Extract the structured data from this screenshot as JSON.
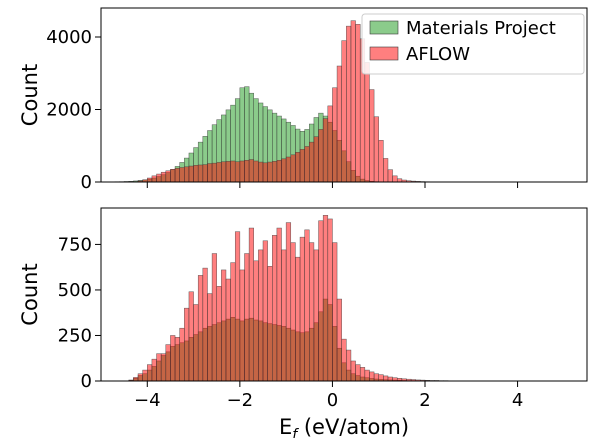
{
  "chart_data": [
    {
      "type": "bar",
      "panel": "top",
      "ylabel": "Count",
      "xlim": [
        -5.0,
        5.5
      ],
      "ylim": [
        0,
        4800
      ],
      "yticks": [
        0,
        2000,
        4000
      ],
      "ytick_labels": [
        "0",
        "2000",
        "4000"
      ],
      "xticks": [
        -4,
        -2,
        0,
        2,
        4
      ],
      "grid": false,
      "legend_position": "top-right",
      "series": [
        {
          "name": "Materials Project",
          "color": "#2ca02c",
          "opacity": 0.55,
          "bin_start": -4.8,
          "bin_width": 0.1,
          "values": [
            5,
            8,
            10,
            15,
            20,
            30,
            45,
            60,
            80,
            110,
            150,
            200,
            260,
            340,
            430,
            540,
            660,
            800,
            950,
            1100,
            1260,
            1420,
            1580,
            1720,
            1850,
            1990,
            2120,
            2300,
            2600,
            2630,
            2450,
            2300,
            2180,
            2080,
            1990,
            1900,
            1820,
            1740,
            1650,
            1560,
            1460,
            1400,
            1450,
            1600,
            1780,
            1900,
            1820,
            1650,
            1420,
            1150,
            860,
            560,
            320,
            160,
            80,
            40,
            20,
            10,
            5,
            3,
            2,
            1,
            1,
            0,
            0,
            0,
            0,
            0,
            0,
            0,
            0,
            0,
            0,
            0,
            0,
            0,
            0,
            0,
            0,
            0,
            0,
            0,
            0,
            0,
            0,
            0,
            0,
            0,
            0,
            0,
            0,
            0,
            0,
            0,
            0,
            0,
            0,
            0,
            0,
            0
          ]
        },
        {
          "name": "AFLOW",
          "color": "#ff0000",
          "opacity": 0.5,
          "bin_start": -4.8,
          "bin_width": 0.1,
          "values": [
            0,
            0,
            1,
            2,
            5,
            10,
            30,
            60,
            110,
            170,
            220,
            270,
            310,
            350,
            380,
            400,
            420,
            440,
            460,
            470,
            480,
            510,
            520,
            540,
            560,
            570,
            580,
            560,
            580,
            600,
            620,
            580,
            550,
            530,
            550,
            570,
            600,
            640,
            690,
            750,
            820,
            900,
            980,
            1100,
            1250,
            1450,
            1750,
            2100,
            2600,
            3200,
            3900,
            4300,
            4450,
            4350,
            3950,
            3300,
            2550,
            1800,
            1150,
            650,
            340,
            170,
            90,
            55,
            35,
            25,
            18,
            12,
            8,
            5,
            3,
            2,
            1,
            1,
            0,
            0,
            0,
            0,
            0,
            0,
            0,
            0,
            0,
            0,
            0,
            0,
            0,
            0,
            0,
            0,
            0,
            0,
            0,
            0,
            0,
            0,
            0,
            0,
            0,
            0
          ]
        }
      ]
    },
    {
      "type": "bar",
      "panel": "bottom",
      "xlabel": "E",
      "xlabel_sub": "f",
      "xlabel_unit": " (eV/atom)",
      "ylabel": "Count",
      "xlim": [
        -5.0,
        5.5
      ],
      "ylim": [
        0,
        950
      ],
      "yticks": [
        0,
        250,
        500,
        750
      ],
      "ytick_labels": [
        "0",
        "250",
        "500",
        "750"
      ],
      "xticks": [
        -4,
        -2,
        0,
        2,
        4
      ],
      "xtick_labels": [
        "−4",
        "−2",
        "0",
        "2",
        "4"
      ],
      "grid": false,
      "series": [
        {
          "name": "Materials Project",
          "color": "#2ca02c",
          "opacity": 0.55,
          "bin_start": -4.8,
          "bin_width": 0.1,
          "values": [
            0,
            0,
            0,
            0,
            5,
            15,
            30,
            40,
            60,
            80,
            110,
            140,
            160,
            190,
            200,
            210,
            220,
            240,
            255,
            270,
            290,
            300,
            310,
            320,
            330,
            340,
            350,
            340,
            330,
            340,
            345,
            335,
            330,
            320,
            315,
            310,
            305,
            300,
            290,
            280,
            270,
            265,
            270,
            290,
            320,
            380,
            450,
            420,
            300,
            180,
            100,
            60,
            40,
            30,
            22,
            18,
            14,
            11,
            9,
            7,
            6,
            5,
            4,
            3,
            2,
            2,
            1,
            1,
            1,
            0,
            0,
            0,
            0,
            0,
            0,
            0,
            0,
            0,
            0,
            0,
            0,
            0,
            0,
            0,
            0,
            0,
            0,
            0,
            0,
            0,
            0,
            0,
            0,
            0,
            0,
            0,
            0,
            0,
            0,
            0
          ]
        },
        {
          "name": "AFLOW",
          "color": "#ff0000",
          "opacity": 0.5,
          "bin_start": -4.8,
          "bin_width": 0.1,
          "values": [
            0,
            0,
            0,
            0,
            5,
            20,
            40,
            60,
            90,
            120,
            150,
            150,
            200,
            250,
            240,
            290,
            400,
            490,
            420,
            580,
            620,
            480,
            700,
            520,
            610,
            560,
            650,
            820,
            610,
            700,
            840,
            660,
            720,
            770,
            630,
            800,
            840,
            720,
            870,
            760,
            680,
            790,
            830,
            760,
            720,
            880,
            910,
            890,
            760,
            450,
            230,
            170,
            110,
            90,
            75,
            60,
            50,
            40,
            35,
            28,
            22,
            18,
            15,
            12,
            10,
            8,
            6,
            5,
            4,
            3,
            3,
            2,
            2,
            1,
            1,
            1,
            0,
            0,
            0,
            0,
            0,
            0,
            0,
            0,
            0,
            0,
            0,
            0,
            0,
            0,
            0,
            0,
            0,
            0,
            0,
            0,
            0,
            0,
            0,
            0
          ]
        }
      ]
    }
  ]
}
